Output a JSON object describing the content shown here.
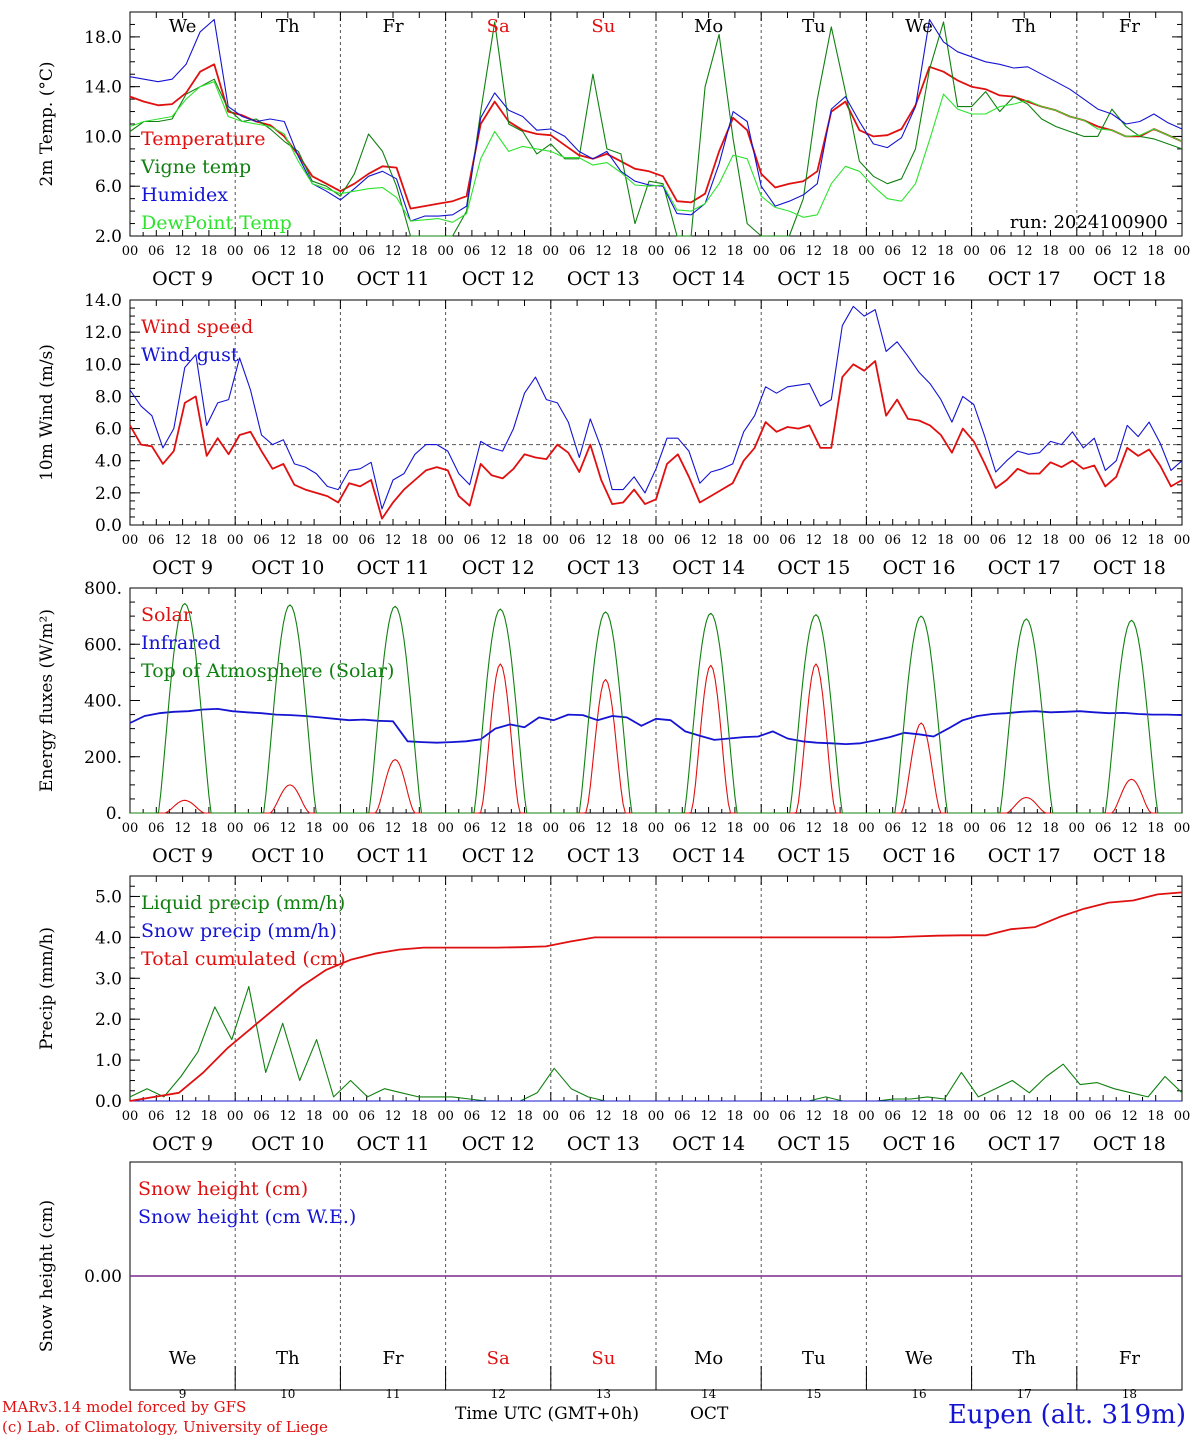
{
  "chart_data": [
    {
      "type": "line",
      "ylabel": "2m Temp. (°C)",
      "ylim": [
        2,
        20
      ],
      "yticks": [
        "2.0",
        "6.0",
        "10.0",
        "14.0",
        "18.0"
      ],
      "ytick_values": [
        2,
        6,
        10,
        14,
        18
      ],
      "legend_position": "top-left",
      "annotation": "run: 2024100900",
      "threshold": null,
      "series": [
        {
          "name": "Temperature",
          "color": "#e01010",
          "values": [
            13.2,
            12.8,
            12.5,
            12.6,
            13.5,
            15.2,
            15.8,
            12,
            11.7,
            11.2,
            10.9,
            10,
            8.5,
            6.8,
            6.2,
            5.6,
            6.2,
            7,
            7.6,
            7.5,
            4.2,
            4.4,
            4.6,
            4.8,
            5.2,
            11,
            12.8,
            11.2,
            10.5,
            10.2,
            10.1,
            9.3,
            8.5,
            8.2,
            8.6,
            8,
            7.4,
            7.2,
            6.8,
            4.8,
            4.7,
            5.4,
            8.8,
            11.5,
            10.5,
            7,
            5.9,
            6.2,
            6.4,
            7.2,
            12,
            12.8,
            10.5,
            10,
            10.1,
            10.6,
            12.5,
            15.6,
            15.2,
            14.5,
            14,
            13.8,
            13.3,
            13.2,
            12.8,
            12.4,
            12.1,
            11.6,
            11.3,
            10.8,
            10.5,
            10,
            10,
            10.6,
            10.1,
            9.6
          ]
        },
        {
          "name": "Vigne temp",
          "color": "#108010",
          "values": [
            10.4,
            11.2,
            11.2,
            11.4,
            13.4,
            14,
            14.6,
            12.2,
            11.2,
            11.4,
            10.6,
            9.6,
            8.8,
            6.4,
            6,
            5.2,
            7,
            10.2,
            8.8,
            6,
            2,
            1.6,
            1.6,
            1.6,
            4,
            12,
            19.2,
            11,
            10.4,
            8.6,
            9.4,
            8.2,
            8.2,
            15,
            9,
            8.6,
            3,
            6.4,
            6.2,
            1.5,
            2,
            14,
            18.2,
            9.8,
            3,
            1,
            1.4,
            2,
            5,
            13,
            18.8,
            13.6,
            8,
            6.8,
            6.2,
            6.6,
            9,
            15.4,
            19.2,
            12.4,
            12.4,
            13.6,
            12,
            13.2,
            12.6,
            11.4,
            10.8,
            10.4,
            10,
            10,
            12.2,
            10.8,
            10,
            9.8,
            9.4,
            9
          ]
        },
        {
          "name": "Humidex",
          "color": "#1414d2",
          "values": [
            14.8,
            14.6,
            14.4,
            14.6,
            15.8,
            18.4,
            19.4,
            12.4,
            11.6,
            11.2,
            11.4,
            11.2,
            8.4,
            6.2,
            5.6,
            4.9,
            5.8,
            6.8,
            7.2,
            6.6,
            3.2,
            3.6,
            3.6,
            3.7,
            4.4,
            11.5,
            13.5,
            12.1,
            11.6,
            10.5,
            10.6,
            10,
            8.8,
            8.2,
            8.8,
            7.2,
            6.4,
            6.1,
            6,
            3.8,
            3.7,
            4.6,
            7.8,
            12,
            11.2,
            6,
            4.4,
            4.8,
            5.3,
            6.2,
            12.2,
            13.2,
            11.2,
            9.4,
            9.1,
            9.9,
            12.4,
            19.4,
            17.6,
            16.8,
            16.4,
            16,
            15.8,
            15.5,
            15.6,
            15,
            14.4,
            13.8,
            13,
            12.2,
            11.8,
            11,
            11.2,
            11.8,
            11.1,
            10.6
          ]
        },
        {
          "name": "DewPoint Temp",
          "color": "#2ee22e",
          "values": [
            10.8,
            11.2,
            11.4,
            11.6,
            13,
            14,
            14.4,
            11.6,
            11.2,
            11,
            10.8,
            10.2,
            8,
            6.2,
            5.8,
            5.4,
            5.6,
            5.8,
            5.9,
            5.1,
            3.2,
            3.3,
            3.4,
            3.1,
            3.8,
            8.2,
            10.4,
            8.8,
            9.2,
            9,
            8.8,
            8.3,
            8.3,
            7.7,
            7.9,
            7.1,
            6.1,
            6,
            6.1,
            4.1,
            4,
            4.6,
            6.2,
            8.5,
            8.2,
            5.2,
            4.3,
            4,
            3.5,
            3.7,
            6.2,
            7.6,
            7.2,
            6,
            5,
            4.8,
            6.2,
            9.7,
            13.4,
            12.2,
            11.8,
            11.8,
            12.4,
            12.6,
            12.9,
            12.4,
            12.1,
            11.6,
            11.3,
            10.6,
            10.5,
            10,
            10.1,
            10.6,
            10.1,
            9.6
          ]
        }
      ]
    },
    {
      "type": "line",
      "ylabel": "10m Wind (m/s)",
      "ylim": [
        0,
        14
      ],
      "yticks": [
        "0.0",
        "2.0",
        "4.0",
        "6.0",
        "8.0",
        "10.0",
        "12.0",
        "14.0"
      ],
      "ytick_values": [
        0,
        2,
        4,
        6,
        8,
        10,
        12,
        14
      ],
      "legend_position": "top-left",
      "annotation": "",
      "threshold": 5,
      "series": [
        {
          "name": "Wind speed",
          "color": "#e01010",
          "values": [
            6.2,
            5,
            4.9,
            3.8,
            4.6,
            7.6,
            8,
            4.3,
            5.4,
            4.4,
            5.6,
            5.8,
            4.6,
            3.5,
            3.8,
            2.5,
            2.2,
            2,
            1.8,
            1.4,
            2.6,
            2.4,
            2.8,
            0.4,
            1.4,
            2.2,
            2.8,
            3.4,
            3.6,
            3.4,
            1.8,
            1.2,
            3.8,
            3.1,
            2.9,
            3.5,
            4.4,
            4.2,
            4.1,
            5,
            4.5,
            3.3,
            5,
            2.8,
            1.3,
            1.4,
            2.2,
            1.3,
            1.6,
            3.8,
            4.4,
            3,
            1.4,
            1.8,
            2.2,
            2.6,
            4,
            4.8,
            6.4,
            5.8,
            6.1,
            6,
            6.2,
            4.8,
            4.8,
            9.2,
            10,
            9.6,
            10.2,
            6.8,
            7.8,
            6.6,
            6.5,
            6.2,
            5.6,
            4.5,
            6,
            5.2,
            3.8,
            2.3,
            2.8,
            3.5,
            3.2,
            3.2,
            3.9,
            3.6,
            4,
            3.5,
            3.7,
            2.4,
            3,
            4.8,
            4.3,
            4.7,
            3.7,
            2.4,
            2.8
          ]
        },
        {
          "name": "Wind gust",
          "color": "#1414d2",
          "values": [
            8.4,
            7.4,
            6.8,
            4.8,
            6,
            9.8,
            10.6,
            6.2,
            7.6,
            7.8,
            10.4,
            8.4,
            5.6,
            5,
            5.3,
            3.8,
            3.6,
            3.2,
            2.4,
            2.2,
            3.4,
            3.5,
            3.9,
            1,
            2.8,
            3.2,
            4.4,
            5,
            5,
            4.6,
            3.2,
            2.5,
            5.2,
            4.8,
            4.6,
            6,
            8.2,
            9.2,
            7.8,
            7.6,
            6.4,
            4.2,
            6.6,
            4.8,
            2.2,
            2.2,
            3,
            2,
            3.5,
            5.4,
            5.4,
            4.6,
            2.6,
            3.3,
            3.5,
            3.8,
            5.8,
            6.8,
            8.6,
            8.2,
            8.6,
            8.7,
            8.8,
            7.4,
            7.8,
            12.4,
            13.6,
            13,
            13.4,
            10.8,
            11.4,
            10.5,
            9.5,
            8.8,
            7.8,
            6.4,
            8,
            7.5,
            5.5,
            3.3,
            4,
            4.6,
            4.4,
            4.5,
            5.2,
            5,
            5.8,
            4.8,
            5.4,
            3.4,
            4,
            6.2,
            5.5,
            6.4,
            5.1,
            3.4,
            4
          ]
        }
      ]
    },
    {
      "type": "line",
      "ylabel": "Energy fluxes (W/m²)",
      "ylim": [
        0,
        800
      ],
      "yticks": [
        "0.",
        "200.",
        "400.",
        "600.",
        "800."
      ],
      "ytick_values": [
        0,
        200,
        400,
        600,
        800
      ],
      "legend_position": "top-left",
      "annotation": "",
      "threshold": null,
      "series": [
        {
          "name": "Solar",
          "color": "#e01010",
          "day_peaks": [
            45,
            100,
            190,
            530,
            475,
            525,
            530,
            320,
            55,
            120
          ]
        },
        {
          "name": "Infrared",
          "color": "#1414d2",
          "values": [
            320,
            345,
            355,
            360,
            362,
            368,
            370,
            362,
            358,
            355,
            350,
            348,
            345,
            340,
            335,
            330,
            332,
            328,
            326,
            255,
            252,
            250,
            252,
            255,
            262,
            300,
            315,
            305,
            340,
            330,
            350,
            348,
            330,
            345,
            340,
            310,
            335,
            330,
            290,
            275,
            260,
            265,
            270,
            272,
            290,
            265,
            255,
            250,
            248,
            245,
            248,
            258,
            270,
            285,
            280,
            272,
            300,
            330,
            345,
            352,
            355,
            360,
            362,
            358,
            360,
            362,
            358,
            355,
            356,
            352,
            350,
            350,
            348
          ]
        },
        {
          "name": "Top of Atmosphere (Solar)",
          "color": "#108010",
          "day_peaks": [
            745,
            740,
            735,
            725,
            715,
            710,
            705,
            700,
            690,
            685
          ]
        }
      ]
    },
    {
      "type": "line",
      "ylabel": "Precip (mm/h)",
      "ylim": [
        0,
        5.5
      ],
      "yticks": [
        "0.0",
        "1.0",
        "2.0",
        "3.0",
        "4.0",
        "5.0"
      ],
      "ytick_values": [
        0,
        1,
        2,
        3,
        4,
        5
      ],
      "legend_position": "top-left",
      "annotation": "",
      "threshold": null,
      "series": [
        {
          "name": "Liquid precip (mm/h)",
          "color": "#108010",
          "values": [
            0.1,
            0.3,
            0.1,
            0.6,
            1.2,
            2.3,
            1.5,
            2.8,
            0.7,
            1.9,
            0.5,
            1.5,
            0.1,
            0.5,
            0.1,
            0.3,
            0.2,
            0.1,
            0.1,
            0.1,
            0.05,
            0,
            0,
            0,
            0.2,
            0.8,
            0.3,
            0.1,
            0,
            0,
            0,
            0,
            0,
            0,
            0,
            0,
            0,
            0,
            0,
            0,
            0,
            0.1,
            0,
            0,
            0,
            0.05,
            0.05,
            0.1,
            0.05,
            0.7,
            0.1,
            0.3,
            0.5,
            0.2,
            0.6,
            0.9,
            0.4,
            0.45,
            0.3,
            0.2,
            0.1,
            0.6,
            0.2
          ]
        },
        {
          "name": "Snow precip (mm/h)",
          "color": "#1414d2",
          "values": [
            0,
            0,
            0,
            0,
            0,
            0,
            0,
            0,
            0,
            0,
            0,
            0,
            0,
            0,
            0,
            0,
            0,
            0,
            0,
            0,
            0,
            0,
            0,
            0,
            0,
            0,
            0,
            0,
            0,
            0,
            0,
            0,
            0,
            0,
            0,
            0,
            0,
            0,
            0,
            0,
            0,
            0,
            0,
            0,
            0,
            0,
            0,
            0,
            0,
            0,
            0,
            0,
            0,
            0,
            0,
            0,
            0,
            0,
            0,
            0,
            0,
            0,
            0
          ]
        },
        {
          "name": "Total cumulated (cm)",
          "color": "#e01010",
          "values": [
            0,
            0.1,
            0.2,
            0.7,
            1.3,
            1.8,
            2.3,
            2.8,
            3.2,
            3.45,
            3.6,
            3.7,
            3.75,
            3.75,
            3.75,
            3.75,
            3.76,
            3.78,
            3.9,
            4,
            4,
            4,
            4,
            4,
            4,
            4,
            4,
            4,
            4,
            4,
            4,
            4,
            4.02,
            4.04,
            4.05,
            4.05,
            4.2,
            4.25,
            4.5,
            4.7,
            4.85,
            4.9,
            5.05,
            5.1
          ]
        }
      ]
    },
    {
      "type": "line",
      "ylabel": "Snow height (cm)",
      "ylim": [
        -1,
        1
      ],
      "yticks": [
        "0.00"
      ],
      "ytick_values": [
        0
      ],
      "legend_position": "top-left",
      "annotation": "",
      "threshold": null,
      "series": [
        {
          "name": "Snow height (cm)",
          "color": "#e01010",
          "values": [
            0,
            0
          ]
        },
        {
          "name": "Snow height (cm W.E.)",
          "color": "#1414d2",
          "values": [
            0,
            0
          ]
        }
      ]
    }
  ],
  "x_axis": {
    "hour_ticks": [
      "00",
      "06",
      "12",
      "18"
    ],
    "dates": [
      "OCT  9",
      "OCT 10",
      "OCT 11",
      "OCT 12",
      "OCT 13",
      "OCT 14",
      "OCT 15",
      "OCT 16",
      "OCT 17",
      "OCT 18"
    ],
    "weekdays": [
      "We",
      "Th",
      "Fr",
      "Sa",
      "Su",
      "Mo",
      "Tu",
      "We",
      "Th",
      "Fr"
    ],
    "weekend_color": "#e01010",
    "day_numbers": [
      "9",
      "10",
      "11",
      "12",
      "13",
      "14",
      "15",
      "16",
      "17",
      "18"
    ],
    "title": "Time UTC (GMT+0h)",
    "month": "OCT"
  },
  "footer": {
    "credit_line1": "MARv3.14 model forced by GFS",
    "credit_line2": "(c) Lab. of Climatology, University of Liege",
    "location": "Eupen (alt. 319m)"
  }
}
